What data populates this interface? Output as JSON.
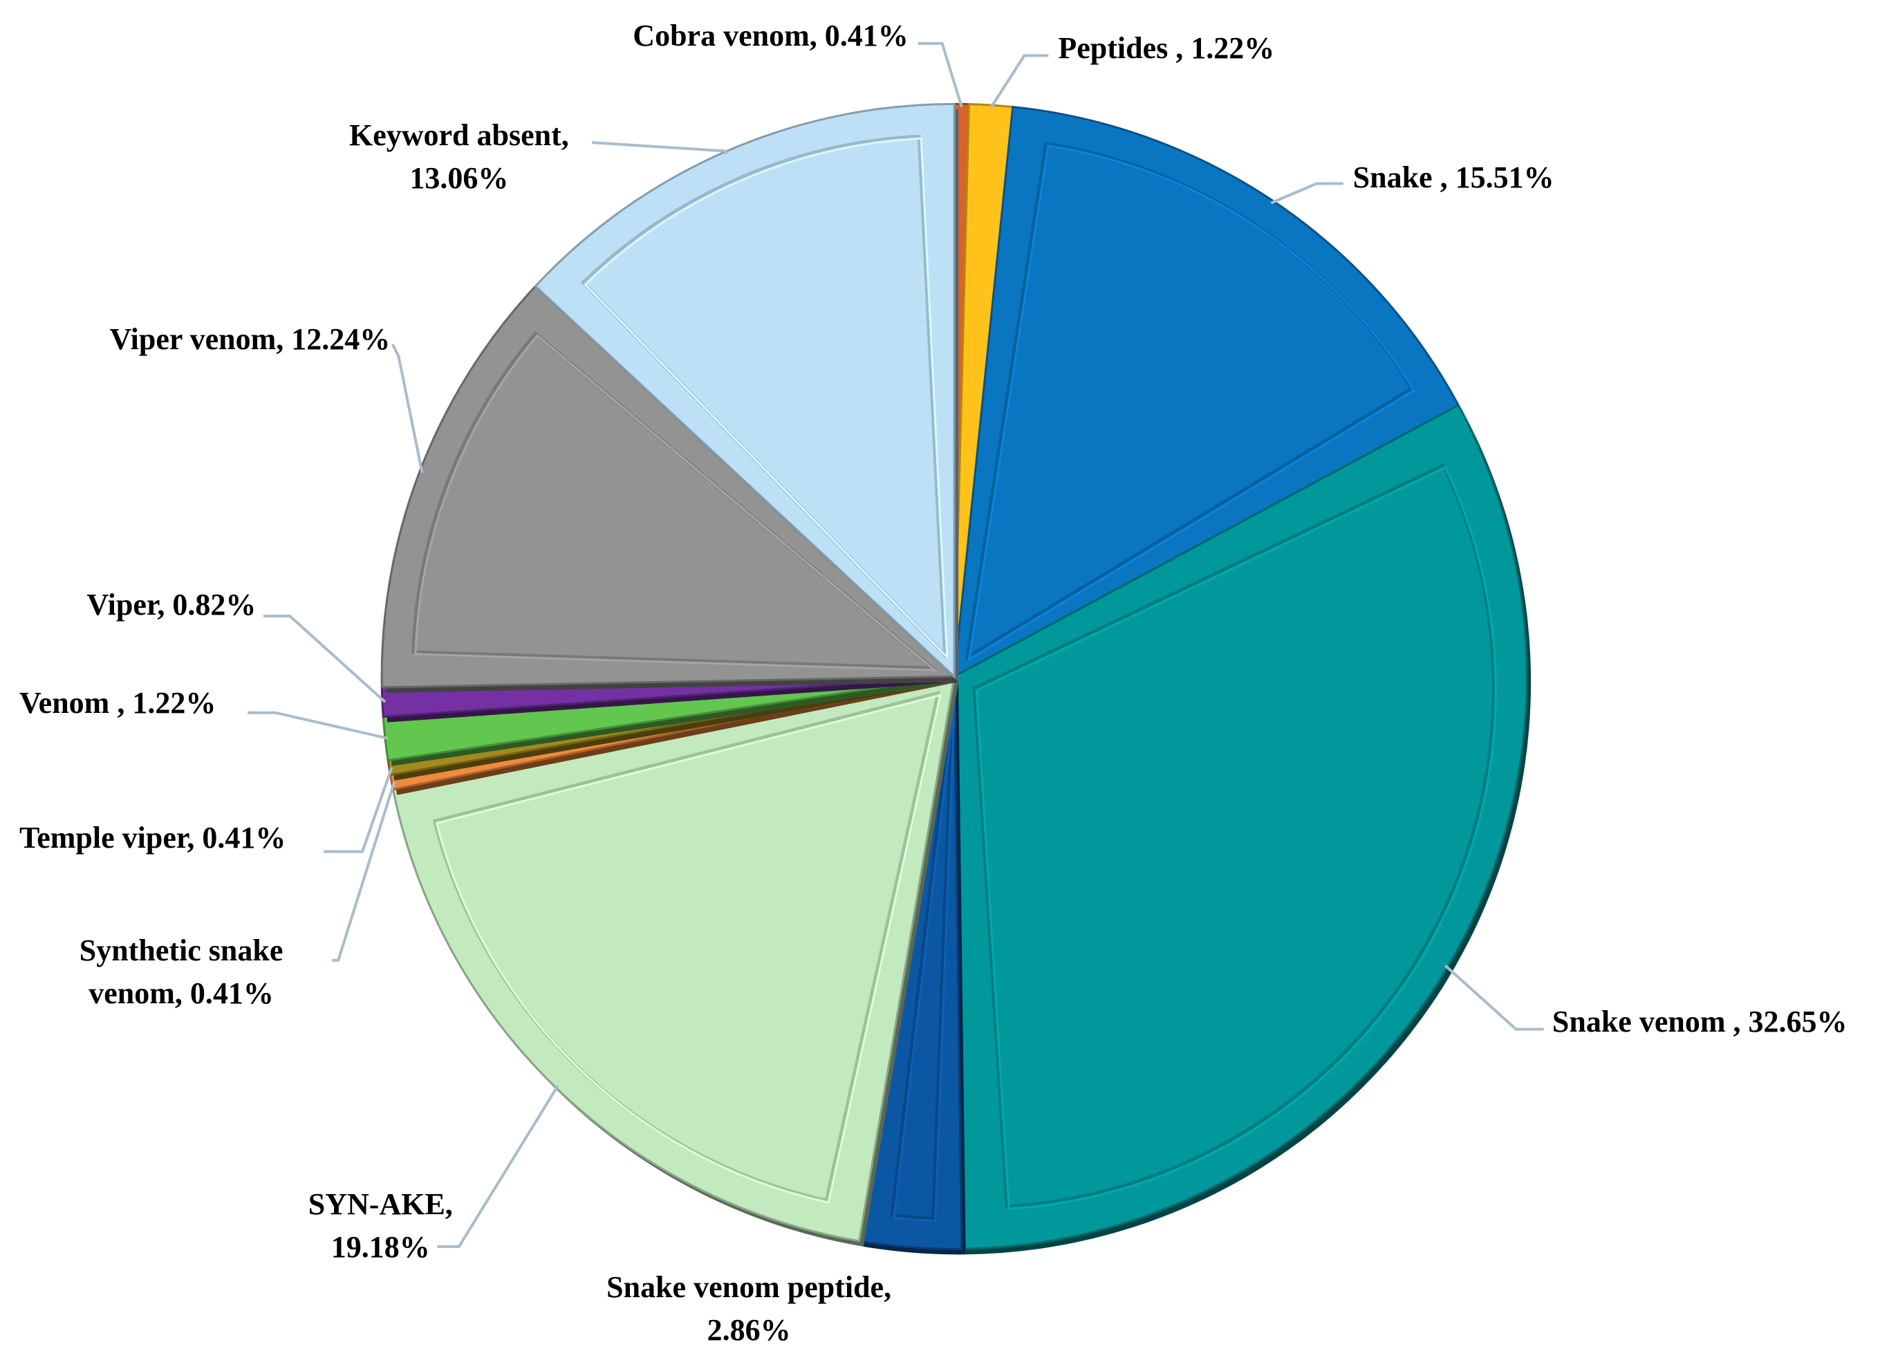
{
  "chart_data": {
    "type": "pie",
    "categories": [
      "Cobra venom,",
      "Peptides ,",
      "Snake ,",
      "Snake venom ,",
      "Snake venom peptide,",
      "SYN-AKE,",
      "Synthetic snake venom,",
      "Temple viper,",
      "Venom ,",
      "Viper,",
      "Viper venom,",
      "Keyword absent,"
    ],
    "values": [
      0.41,
      1.22,
      15.51,
      32.65,
      2.86,
      19.18,
      0.41,
      0.41,
      1.22,
      0.82,
      12.24,
      13.06
    ],
    "value_labels": [
      "0.41%",
      "1.22%",
      "15.51%",
      "32.65%",
      "2.86%",
      "19.18%",
      "0.41%",
      "0.41%",
      "1.22%",
      "0.82%",
      "12.24%",
      "13.06%"
    ],
    "colors": [
      "#d8642a",
      "#ffc21a",
      "#0a76c2",
      "#00989b",
      "#0b57a3",
      "#c3e9bf",
      "#f08a3c",
      "#a48a1e",
      "#62c64f",
      "#7531a3",
      "#939393",
      "#bde0f6"
    ]
  }
}
